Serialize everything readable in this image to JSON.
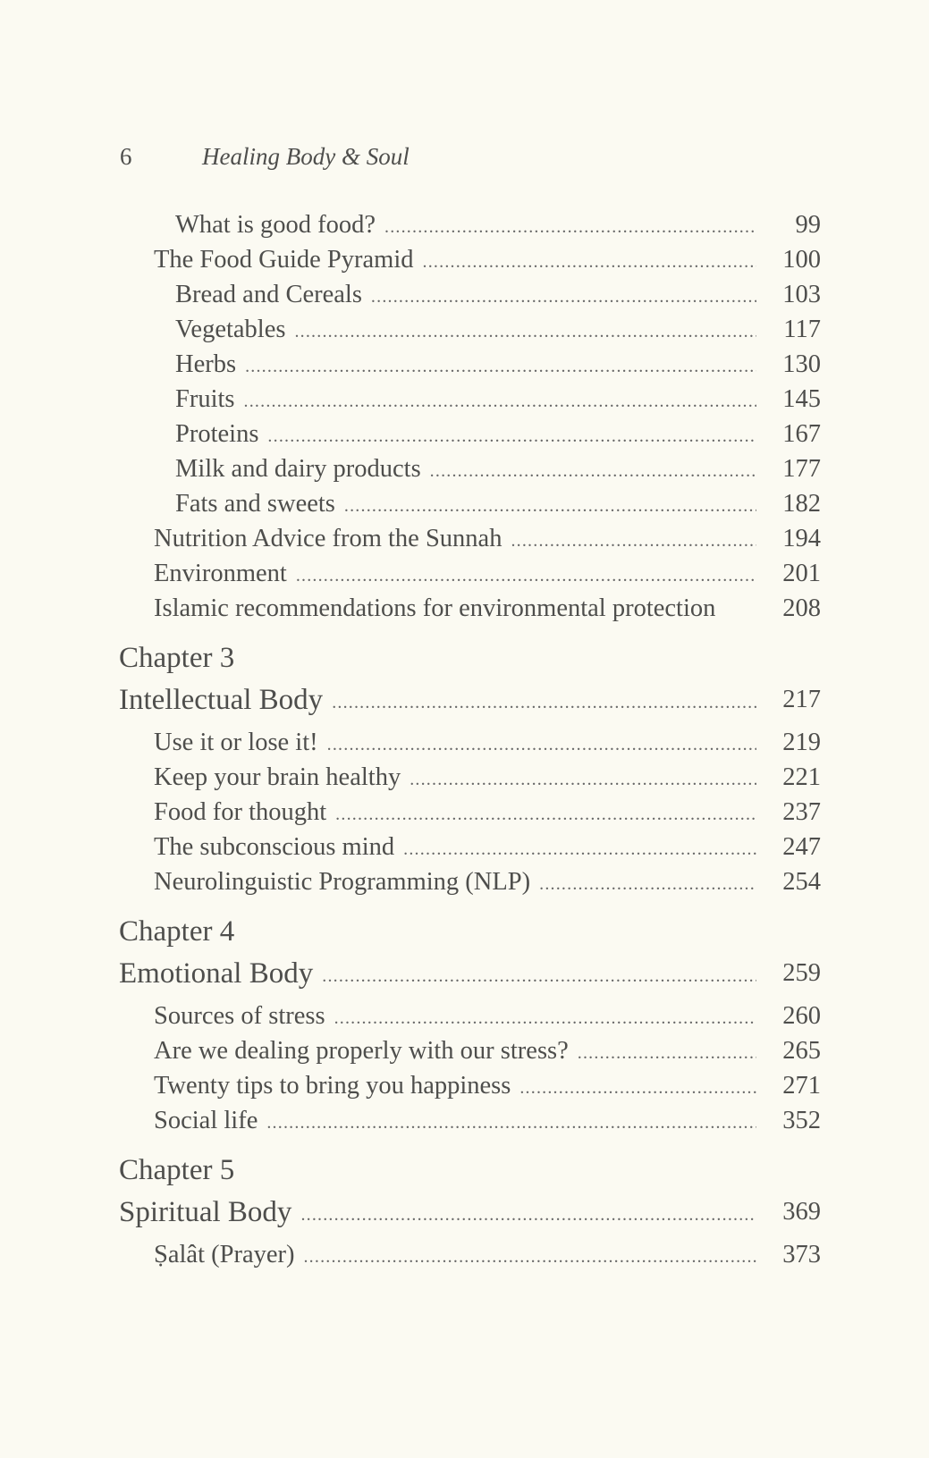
{
  "header": {
    "page_number": "6",
    "running_title": "Healing Body & Soul"
  },
  "entries": [
    {
      "type": "l2",
      "text": "What is good food?",
      "page": "99"
    },
    {
      "type": "l1",
      "text": "The Food Guide Pyramid",
      "page": "100"
    },
    {
      "type": "l2",
      "text": "Bread and Cereals",
      "page": "103"
    },
    {
      "type": "l2",
      "text": "Vegetables",
      "page": "117"
    },
    {
      "type": "l2",
      "text": "Herbs",
      "page": "130"
    },
    {
      "type": "l2",
      "text": "Fruits",
      "page": "145"
    },
    {
      "type": "l2",
      "text": "Proteins",
      "page": "167"
    },
    {
      "type": "l2",
      "text": "Milk and dairy products",
      "page": "177"
    },
    {
      "type": "l2",
      "text": "Fats and sweets",
      "page": "182"
    },
    {
      "type": "l1",
      "text": "Nutrition Advice from  the Sunnah",
      "page": "194"
    },
    {
      "type": "l1",
      "text": "Environment",
      "page": "201"
    },
    {
      "type": "l1",
      "text": "Islamic recommendations for environmental protection",
      "page": "208",
      "nodots": true
    },
    {
      "type": "chap-label",
      "text": "Chapter 3"
    },
    {
      "type": "chap-title",
      "text": "Intellectual Body",
      "page": "217"
    },
    {
      "type": "l1",
      "text": "Use it or lose it!",
      "page": "219"
    },
    {
      "type": "l1",
      "text": "Keep your brain healthy",
      "page": "221"
    },
    {
      "type": "l1",
      "text": "Food for thought",
      "page": "237"
    },
    {
      "type": "l1",
      "text": "The subconscious mind",
      "page": "247"
    },
    {
      "type": "l1",
      "text": "Neurolinguistic  Programming (NLP)",
      "page": "254"
    },
    {
      "type": "chap-label",
      "text": "Chapter 4"
    },
    {
      "type": "chap-title",
      "text": "Emotional Body",
      "page": "259"
    },
    {
      "type": "l1",
      "text": "Sources of stress",
      "page": "260"
    },
    {
      "type": "l1",
      "text": "Are we dealing properly  with our stress?",
      "page": "265"
    },
    {
      "type": "l1",
      "text": "Twenty tips to bring you  happiness",
      "page": "271"
    },
    {
      "type": "l1",
      "text": "Social life",
      "page": "352"
    },
    {
      "type": "chap-label",
      "text": "Chapter 5"
    },
    {
      "type": "chap-title",
      "text": "Spiritual Body",
      "page": "369"
    },
    {
      "type": "l1",
      "text": "Ṣalât (Prayer)",
      "page": "373"
    }
  ]
}
